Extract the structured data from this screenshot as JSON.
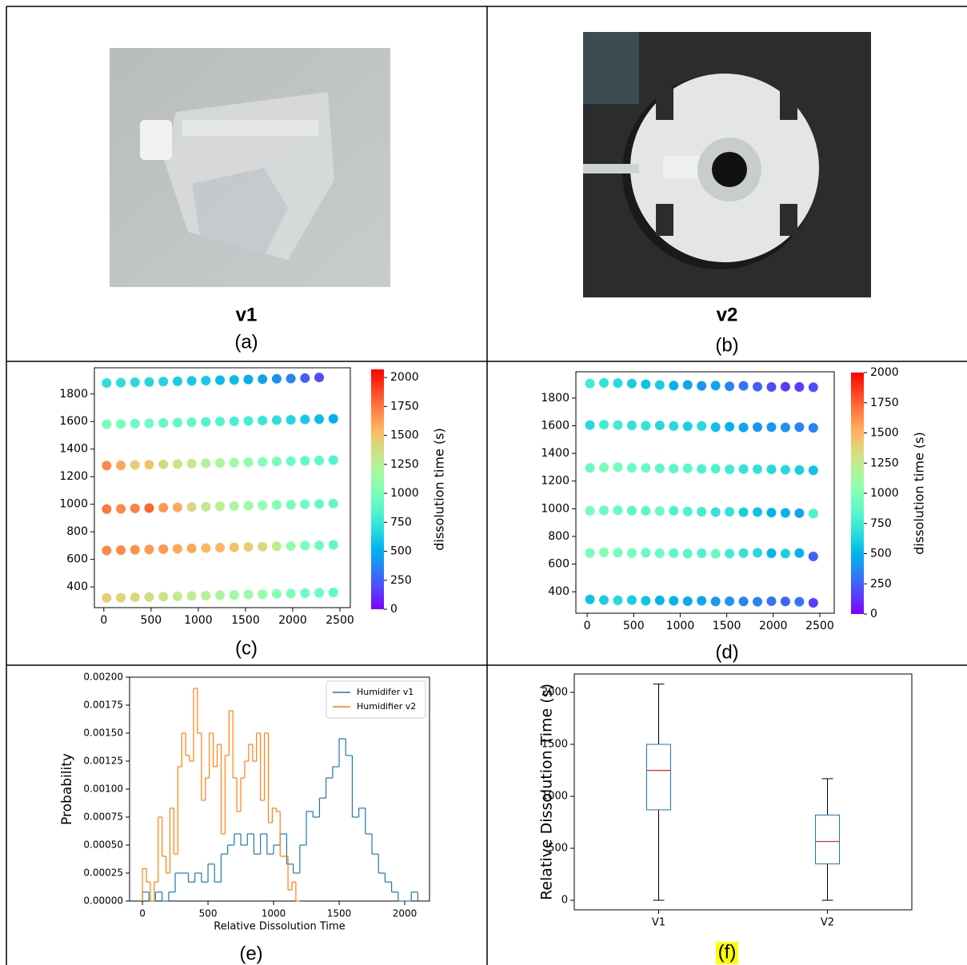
{
  "panels": {
    "a": {
      "name": "v1",
      "label": "(a)"
    },
    "b": {
      "name": "v2",
      "label": "(b)"
    },
    "c": {
      "label": "(c)"
    },
    "d": {
      "label": "(d)"
    },
    "e": {
      "label": "(e)"
    },
    "f": {
      "label": "(f)"
    }
  },
  "chart_data": [
    {
      "type": "scatter",
      "colormap": "rainbow",
      "clabel": "dissolution time (s)",
      "xlim": [
        -100,
        2610
      ],
      "ylim": [
        250,
        1990
      ],
      "clim": [
        0,
        2070
      ],
      "xticks": [
        0,
        500,
        1000,
        1500,
        2000,
        2500
      ],
      "yticks": [
        400,
        600,
        800,
        1000,
        1200,
        1400,
        1600,
        1800
      ],
      "cticks": [
        0,
        250,
        500,
        750,
        1000,
        1250,
        1500,
        1750,
        2000
      ],
      "x": [
        30,
        180,
        330,
        480,
        630,
        780,
        930,
        1080,
        1230,
        1380,
        1530,
        1680,
        1830,
        1980,
        2130,
        2280,
        2430
      ],
      "series": [
        {
          "y": [
            320,
            322,
            325,
            327,
            330,
            332,
            335,
            337,
            340,
            342,
            345,
            347,
            350,
            352,
            355,
            357,
            360
          ],
          "c": [
            1450,
            1420,
            1400,
            1380,
            1350,
            1300,
            1280,
            1250,
            1200,
            1150,
            1150,
            1100,
            1050,
            1000,
            950,
            950,
            900
          ]
        },
        {
          "y": [
            665,
            667,
            670,
            672,
            675,
            677,
            680,
            682,
            685,
            687,
            690,
            692,
            695,
            697,
            700,
            702,
            705
          ],
          "c": [
            1700,
            1700,
            1680,
            1650,
            1650,
            1600,
            1600,
            1550,
            1550,
            1500,
            1450,
            1400,
            1300,
            1100,
            1000,
            950,
            900
          ]
        },
        {
          "y": [
            965,
            967,
            970,
            972,
            975,
            977,
            980,
            982,
            985,
            987,
            990,
            992,
            995,
            997,
            1000,
            1002,
            1005
          ],
          "c": [
            1750,
            1700,
            1720,
            1800,
            1650,
            1600,
            1400,
            1300,
            1250,
            1200,
            1150,
            1100,
            1050,
            1000,
            950,
            900,
            900
          ]
        },
        {
          "y": [
            1280,
            1282,
            1285,
            1287,
            1290,
            1292,
            1295,
            1297,
            1300,
            1302,
            1305,
            1307,
            1310,
            1312,
            1315,
            1317,
            1320
          ],
          "c": [
            1700,
            1600,
            1450,
            1500,
            1400,
            1350,
            1300,
            1250,
            1200,
            1150,
            1100,
            1050,
            1000,
            950,
            900,
            900,
            850
          ]
        },
        {
          "y": [
            1580,
            1582,
            1585,
            1587,
            1590,
            1592,
            1595,
            1597,
            1600,
            1602,
            1605,
            1607,
            1610,
            1612,
            1615,
            1617,
            1620
          ],
          "c": [
            1000,
            1000,
            950,
            950,
            900,
            900,
            900,
            850,
            850,
            800,
            800,
            750,
            700,
            650,
            600,
            550,
            500
          ]
        },
        {
          "y": [
            1880,
            1882,
            1885,
            1887,
            1890,
            1892,
            1895,
            1897,
            1900,
            1902,
            1905,
            1907,
            1910,
            1912,
            1915,
            1920,
            null
          ],
          "c": [
            700,
            700,
            680,
            650,
            650,
            620,
            600,
            600,
            550,
            550,
            500,
            450,
            400,
            350,
            250,
            200,
            null
          ]
        }
      ]
    },
    {
      "type": "scatter",
      "colormap": "rainbow",
      "clabel": "dissolution time (s)",
      "xlim": [
        -121,
        2655
      ],
      "ylim": [
        245,
        1990
      ],
      "clim": [
        0,
        2000
      ],
      "xticks": [
        0,
        500,
        1000,
        1500,
        2000,
        2500
      ],
      "yticks": [
        400,
        600,
        800,
        1000,
        1200,
        1400,
        1600,
        1800
      ],
      "cticks": [
        0,
        250,
        500,
        750,
        1000,
        1250,
        1500,
        1750,
        2000
      ],
      "x": [
        30,
        180,
        330,
        480,
        630,
        780,
        930,
        1080,
        1230,
        1380,
        1530,
        1680,
        1830,
        1980,
        2130,
        2280,
        2430
      ],
      "series": [
        {
          "y": [
            345,
            340,
            338,
            340,
            335,
            338,
            335,
            332,
            335,
            330,
            332,
            330,
            328,
            332,
            330,
            328,
            320
          ],
          "c": [
            550,
            600,
            650,
            600,
            550,
            500,
            500,
            450,
            450,
            400,
            400,
            350,
            350,
            300,
            250,
            300,
            150
          ]
        },
        {
          "y": [
            680,
            685,
            683,
            680,
            682,
            678,
            680,
            676,
            678,
            675,
            676,
            680,
            682,
            678,
            676,
            680,
            655
          ],
          "c": [
            950,
            1000,
            950,
            950,
            900,
            900,
            850,
            850,
            800,
            900,
            750,
            700,
            650,
            500,
            600,
            500,
            250
          ]
        },
        {
          "y": [
            985,
            988,
            990,
            987,
            985,
            983,
            985,
            980,
            978,
            976,
            978,
            975,
            976,
            972,
            970,
            968,
            965
          ],
          "c": [
            950,
            900,
            900,
            850,
            850,
            900,
            800,
            800,
            750,
            700,
            700,
            600,
            550,
            500,
            500,
            450,
            800
          ]
        },
        {
          "y": [
            1295,
            1298,
            1300,
            1296,
            1295,
            1292,
            1290,
            1292,
            1288,
            1290,
            1285,
            1287,
            1286,
            1285,
            1282,
            1280,
            1278
          ],
          "c": [
            900,
            950,
            950,
            900,
            900,
            850,
            850,
            850,
            800,
            800,
            750,
            700,
            700,
            650,
            650,
            600,
            550
          ]
        },
        {
          "y": [
            1605,
            1608,
            1605,
            1603,
            1600,
            1602,
            1598,
            1596,
            1598,
            1590,
            1593,
            1588,
            1590,
            1590,
            1588,
            1590,
            1585
          ],
          "c": [
            650,
            750,
            750,
            700,
            700,
            650,
            650,
            600,
            650,
            550,
            500,
            450,
            400,
            400,
            400,
            350,
            350
          ]
        },
        {
          "y": [
            1905,
            1910,
            1908,
            1905,
            1900,
            1895,
            1890,
            1895,
            1888,
            1890,
            1885,
            1888,
            1882,
            1880,
            1882,
            1880,
            1878
          ],
          "c": [
            750,
            700,
            650,
            600,
            550,
            600,
            500,
            450,
            400,
            450,
            350,
            300,
            250,
            200,
            150,
            150,
            200
          ]
        }
      ]
    },
    {
      "type": "histogram",
      "xlabel": "Relative Dissolution Time",
      "ylabel": "Probability",
      "legend": "upper right",
      "xlim": [
        -98,
        2189
      ],
      "ylim": [
        0,
        0.002
      ],
      "xticks": [
        0,
        500,
        1000,
        1500,
        2000
      ],
      "yticks": [
        {
          "value": 0,
          "label": "0.00000"
        },
        {
          "value": 0.00025,
          "label": "0.00025"
        },
        {
          "value": 0.0005,
          "label": "0.00050"
        },
        {
          "value": 0.00075,
          "label": "0.00075"
        },
        {
          "value": 0.001,
          "label": "0.00100"
        },
        {
          "value": 0.00125,
          "label": "0.00125"
        },
        {
          "value": 0.0015,
          "label": "0.00150"
        },
        {
          "value": 0.00175,
          "label": "0.00175"
        },
        {
          "value": 0.002,
          "label": "0.00200"
        }
      ],
      "series": [
        {
          "name": "Humidifer v1",
          "color": "#1f77b4",
          "bins": [
            0,
            50,
            100,
            150,
            200,
            250,
            300,
            350,
            400,
            450,
            500,
            550,
            600,
            650,
            700,
            750,
            800,
            850,
            900,
            950,
            1000,
            1050,
            1100,
            1150,
            1200,
            1250,
            1300,
            1350,
            1400,
            1450,
            1500,
            1550,
            1600,
            1650,
            1700,
            1750,
            1800,
            1850,
            1900,
            1950,
            2000,
            2050,
            2100
          ],
          "values": [
            8e-05,
            0,
            8e-05,
            0,
            8e-05,
            0.00025,
            0.00025,
            0.00017,
            0.00025,
            0.00017,
            0.00033,
            0.00017,
            0.00042,
            0.0005,
            0.0006,
            0.0005,
            0.0006,
            0.00042,
            0.0006,
            0.00042,
            0.0005,
            0.0006,
            0.00033,
            0.00025,
            0.0005,
            0.0008,
            0.00075,
            0.00092,
            0.0011,
            0.0012,
            0.00145,
            0.0013,
            0.00075,
            0.00083,
            0.0006,
            0.00042,
            0.00025,
            0.00017,
            8e-05,
            0,
            0,
            8e-05
          ]
        },
        {
          "name": "Humidifier v2",
          "color": "#ff7f0e",
          "bins": [
            0,
            30,
            60,
            90,
            120,
            150,
            180,
            210,
            240,
            270,
            300,
            330,
            360,
            390,
            420,
            450,
            480,
            510,
            540,
            570,
            600,
            630,
            660,
            690,
            720,
            750,
            780,
            810,
            840,
            870,
            900,
            930,
            960,
            990,
            1020,
            1050,
            1080,
            1110,
            1140,
            1170,
            1200
          ],
          "values": [
            0.00029,
            0.00017,
            0,
            0.00017,
            0.00075,
            0.0004,
            0.00025,
            0.00083,
            0.00042,
            0.0012,
            0.0015,
            0.0013,
            0.00125,
            0.0019,
            0.0015,
            0.0009,
            0.0011,
            0.0015,
            0.0012,
            0.0014,
            0.0006,
            0.0013,
            0.0017,
            0.0011,
            0.0008,
            0.0011,
            0.00125,
            0.0014,
            0.00125,
            0.0015,
            0.0009,
            0.0015,
            0.0007,
            0.00083,
            0.0008,
            0.0004,
            0.0004,
            0.0001,
            0.00017,
            0
          ]
        }
      ]
    },
    {
      "type": "box",
      "ylabel": "Relative Dissolution Time (s)",
      "box_color": "#1f77b4",
      "median_color": "#ff0000",
      "ylim": [
        -92,
        2177
      ],
      "yticks": [
        0,
        500,
        1000,
        1500,
        2000
      ],
      "categories": [
        "V1",
        "V2"
      ],
      "boxes": [
        {
          "min": 0,
          "q1": 870,
          "median": 1250,
          "q3": 1500,
          "max": 2080
        },
        {
          "min": 0,
          "q1": 350,
          "median": 565,
          "q3": 820,
          "max": 1170
        }
      ]
    }
  ]
}
